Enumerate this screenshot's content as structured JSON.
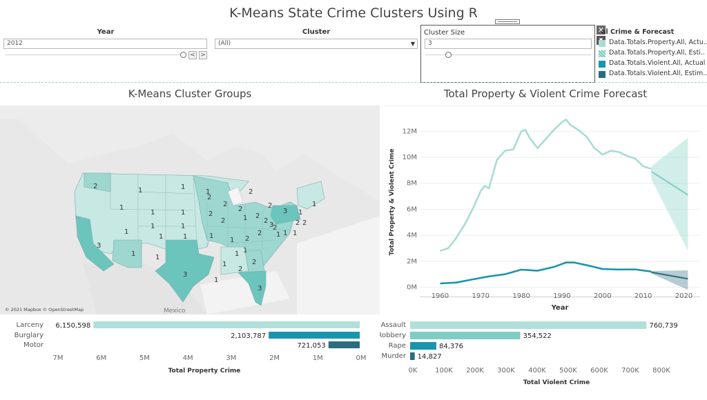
{
  "title": "K-Means State Crime Clusters Using R",
  "filters": {
    "year": {
      "label": "Year",
      "value": "2012",
      "prev": "<",
      "next": ">"
    },
    "cluster": {
      "label": "Cluster",
      "value": "(All)"
    },
    "cluster_size": {
      "label": "Cluster Size",
      "value": "3"
    }
  },
  "legend": {
    "title": "al Crime & Forecast",
    "items": [
      {
        "label": "Data.Totals.Property.All, Actu..",
        "color": "#a8dcd4"
      },
      {
        "label": "Data.Totals.Property.All, Esti..",
        "color": "#7fcdc4"
      },
      {
        "label": "Data.Totals.Violent.All, Actual",
        "color": "#1a95ad"
      },
      {
        "label": "Data.Totals.Violent.All, Estim..",
        "color": "#2a6d7f"
      }
    ]
  },
  "map": {
    "title": "K-Means Cluster Groups",
    "attribution": "© 2021 Mapbox © OpenStreetMap",
    "country_label": "Mexico",
    "state_labels": [
      "2",
      "1",
      "1",
      "1",
      "2",
      "2",
      "1",
      "1",
      "1",
      "1",
      "1",
      "1",
      "3",
      "1",
      "1",
      "1",
      "1",
      "2",
      "2",
      "1",
      "2",
      "2",
      "2",
      "2",
      "3",
      "2",
      "2",
      "2",
      "1",
      "1",
      "1",
      "1",
      "3",
      "1",
      "2",
      "2",
      "1",
      "1",
      "1",
      "1",
      "2",
      "1",
      "2",
      "1",
      "3",
      "2",
      "3"
    ],
    "colors": {
      "cluster1": "#c8e8e3",
      "cluster2": "#9dd7cf",
      "cluster3": "#6cc5bd",
      "land": "#eaeaea",
      "water": "#f4f4f4"
    }
  },
  "forecast": {
    "title": "Total Property & Violent Crime Forecast"
  },
  "chart_data": [
    {
      "type": "line",
      "title": "Total Property & Violent Crime Forecast",
      "xlabel": "Year",
      "ylabel": "Total Property & Violent Crime",
      "xlim": [
        1955,
        2024
      ],
      "ylim": [
        -400000,
        13500000
      ],
      "x_ticks": [
        "1960",
        "1970",
        "1980",
        "1990",
        "2000",
        "2010",
        "2020"
      ],
      "y_ticks": [
        "0M",
        "2M",
        "4M",
        "6M",
        "8M",
        "10M",
        "12M"
      ],
      "series": [
        {
          "name": "Data.Totals.Property.All, Actu..",
          "color": "#a8dcd4",
          "x": [
            1960,
            1962,
            1964,
            1966,
            1968,
            1970,
            1971,
            1972,
            1974,
            1976,
            1978,
            1980,
            1981,
            1982,
            1984,
            1986,
            1988,
            1990,
            1991,
            1992,
            1994,
            1996,
            1998,
            2000,
            2002,
            2004,
            2006,
            2008,
            2010,
            2012
          ],
          "y": [
            2800000,
            3000000,
            3800000,
            4800000,
            6000000,
            7400000,
            7800000,
            7600000,
            9800000,
            10500000,
            10600000,
            12000000,
            12100000,
            11500000,
            10700000,
            11400000,
            12100000,
            12700000,
            12900000,
            12500000,
            12100000,
            11600000,
            10700000,
            10200000,
            10500000,
            10400000,
            10100000,
            9900000,
            9300000,
            9100000
          ]
        },
        {
          "name": "Data.Totals.Property.All, Esti..",
          "color": "#7fcdc4",
          "x": [
            2012,
            2021
          ],
          "y": [
            8900000,
            7100000
          ],
          "band_lower": [
            8300000,
            2800000
          ],
          "band_upper": [
            9300000,
            11500000
          ]
        },
        {
          "name": "Data.Totals.Violent.All, Actual",
          "color": "#1a95ad",
          "x": [
            1960,
            1964,
            1968,
            1972,
            1976,
            1980,
            1984,
            1988,
            1991,
            1993,
            1996,
            2000,
            2004,
            2008,
            2012
          ],
          "y": [
            290000,
            360000,
            600000,
            830000,
            1000000,
            1350000,
            1270000,
            1560000,
            1900000,
            1900000,
            1700000,
            1400000,
            1360000,
            1370000,
            1200000
          ]
        },
        {
          "name": "Data.Totals.Violent.All, Estim..",
          "color": "#2a6d7f",
          "x": [
            2012,
            2021
          ],
          "y": [
            1150000,
            650000
          ],
          "band_lower": [
            1050000,
            -200000
          ],
          "band_upper": [
            1250000,
            1300000
          ]
        }
      ]
    },
    {
      "type": "bar",
      "xlabel": "Total Property Crime",
      "categories": [
        "Larceny",
        "Burglary",
        "Motor"
      ],
      "values": [
        6150598,
        2103787,
        721053
      ],
      "labels": [
        "6,150,598",
        "2,103,787",
        "721,053"
      ],
      "colors": [
        "#b0e0d9",
        "#1a95ad",
        "#2a6d7f"
      ],
      "x_ticks": [
        "7M",
        "6M",
        "5M",
        "4M",
        "3M",
        "2M",
        "1M",
        "0M"
      ],
      "xlim": [
        7000000,
        0
      ],
      "orientation": "reversed"
    },
    {
      "type": "bar",
      "xlabel": "Total Violent Crime",
      "categories": [
        "Assault",
        "Robbery",
        "Rape",
        "Murder"
      ],
      "values": [
        760739,
        354522,
        84376,
        14827
      ],
      "labels": [
        "760,739",
        "354,522",
        "84,376",
        "14,827"
      ],
      "colors": [
        "#b0e0d9",
        "#7fcdc4",
        "#1a95ad",
        "#2a6d7f"
      ],
      "x_ticks": [
        "0K",
        "100K",
        "200K",
        "300K",
        "400K",
        "500K",
        "600K",
        "700K",
        "800K"
      ],
      "xlim": [
        0,
        880000
      ]
    }
  ]
}
